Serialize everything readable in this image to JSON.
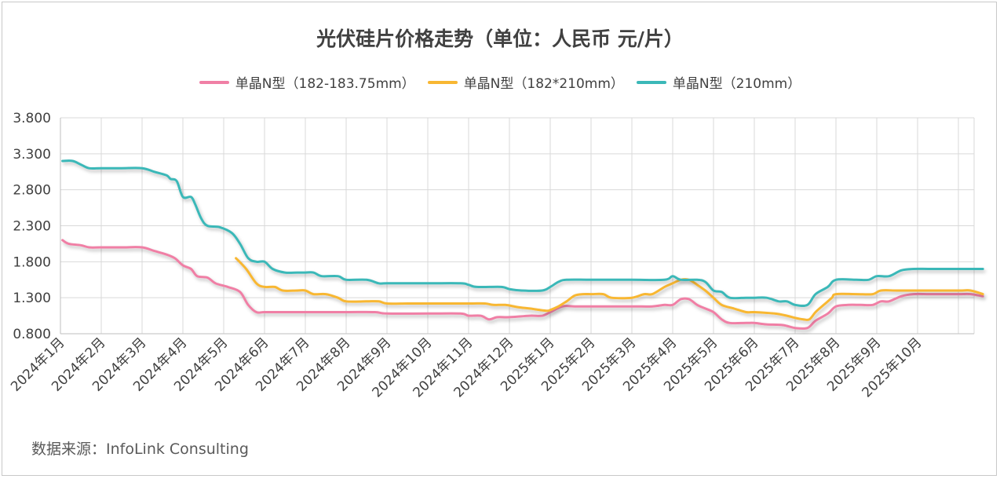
{
  "title": "光伏硅片价格走势（单位：人民币 元/片）",
  "source": "数据来源：InfoLink Consulting",
  "chart_data": {
    "type": "line",
    "title": "光伏硅片价格走势（单位：人民币 元/片）",
    "legend_position": "top",
    "grid": true,
    "ylim": [
      0.8,
      3.8
    ],
    "yticks": [
      "0.800",
      "1.300",
      "1.800",
      "2.300",
      "2.800",
      "3.300",
      "3.800"
    ],
    "categories": [
      "2024年1月",
      "2024年2月",
      "2024年3月",
      "2024年4月",
      "2024年5月",
      "2024年6月",
      "2024年7月",
      "2024年8月",
      "2024年9月",
      "2024年10月",
      "2024年11月",
      "2024年12月",
      "2025年1月",
      "2025年2月",
      "2025年3月",
      "2025年4月",
      "2025年5月",
      "2025年6月",
      "2025年7月",
      "2025年8月",
      "2025年9月",
      "2025年10月"
    ],
    "series": [
      {
        "name": "单晶N型（182-183.75mm）",
        "color": "#f07fa5",
        "points": [
          [
            0.05,
            2.1
          ],
          [
            0.2,
            2.05
          ],
          [
            0.5,
            2.03
          ],
          [
            0.7,
            2.0
          ],
          [
            1.0,
            2.0
          ],
          [
            1.5,
            2.0
          ],
          [
            2.0,
            2.0
          ],
          [
            2.3,
            1.95
          ],
          [
            2.6,
            1.9
          ],
          [
            2.8,
            1.85
          ],
          [
            3.0,
            1.75
          ],
          [
            3.2,
            1.7
          ],
          [
            3.35,
            1.6
          ],
          [
            3.6,
            1.58
          ],
          [
            3.8,
            1.5
          ],
          [
            4.1,
            1.45
          ],
          [
            4.4,
            1.38
          ],
          [
            4.6,
            1.2
          ],
          [
            4.8,
            1.1
          ],
          [
            5.0,
            1.1
          ],
          [
            5.5,
            1.1
          ],
          [
            6.0,
            1.1
          ],
          [
            7.0,
            1.1
          ],
          [
            7.7,
            1.1
          ],
          [
            8.0,
            1.08
          ],
          [
            9.0,
            1.08
          ],
          [
            9.8,
            1.08
          ],
          [
            10.0,
            1.05
          ],
          [
            10.3,
            1.05
          ],
          [
            10.5,
            1.0
          ],
          [
            10.7,
            1.03
          ],
          [
            11.0,
            1.03
          ],
          [
            11.5,
            1.05
          ],
          [
            11.8,
            1.05
          ],
          [
            12.0,
            1.1
          ],
          [
            12.3,
            1.18
          ],
          [
            12.6,
            1.18
          ],
          [
            13.0,
            1.18
          ],
          [
            14.0,
            1.18
          ],
          [
            14.5,
            1.18
          ],
          [
            14.8,
            1.2
          ],
          [
            15.0,
            1.2
          ],
          [
            15.2,
            1.28
          ],
          [
            15.4,
            1.28
          ],
          [
            15.6,
            1.2
          ],
          [
            15.8,
            1.15
          ],
          [
            16.0,
            1.1
          ],
          [
            16.2,
            1.0
          ],
          [
            16.4,
            0.95
          ],
          [
            16.8,
            0.95
          ],
          [
            17.0,
            0.95
          ],
          [
            17.3,
            0.93
          ],
          [
            17.7,
            0.92
          ],
          [
            18.0,
            0.88
          ],
          [
            18.3,
            0.88
          ],
          [
            18.5,
            0.98
          ],
          [
            18.8,
            1.08
          ],
          [
            19.0,
            1.18
          ],
          [
            19.3,
            1.2
          ],
          [
            19.6,
            1.2
          ],
          [
            19.9,
            1.2
          ],
          [
            20.1,
            1.25
          ],
          [
            20.3,
            1.25
          ],
          [
            20.6,
            1.32
          ],
          [
            20.9,
            1.35
          ],
          [
            21.3,
            1.35
          ],
          [
            22.0,
            1.35
          ],
          [
            22.3,
            1.35
          ],
          [
            22.6,
            1.32
          ]
        ]
      },
      {
        "name": "单晶N型（182*210mm）",
        "color": "#f8b733",
        "points": [
          [
            4.3,
            1.85
          ],
          [
            4.55,
            1.7
          ],
          [
            4.8,
            1.5
          ],
          [
            5.0,
            1.45
          ],
          [
            5.25,
            1.45
          ],
          [
            5.45,
            1.4
          ],
          [
            5.8,
            1.4
          ],
          [
            6.0,
            1.4
          ],
          [
            6.2,
            1.35
          ],
          [
            6.5,
            1.35
          ],
          [
            6.8,
            1.3
          ],
          [
            7.0,
            1.25
          ],
          [
            7.5,
            1.25
          ],
          [
            7.8,
            1.25
          ],
          [
            8.0,
            1.22
          ],
          [
            8.5,
            1.22
          ],
          [
            9.0,
            1.22
          ],
          [
            10.0,
            1.22
          ],
          [
            10.4,
            1.22
          ],
          [
            10.6,
            1.2
          ],
          [
            10.9,
            1.2
          ],
          [
            11.2,
            1.17
          ],
          [
            11.5,
            1.15
          ],
          [
            11.9,
            1.12
          ],
          [
            12.0,
            1.13
          ],
          [
            12.2,
            1.18
          ],
          [
            12.4,
            1.25
          ],
          [
            12.6,
            1.33
          ],
          [
            12.8,
            1.35
          ],
          [
            13.0,
            1.35
          ],
          [
            13.3,
            1.35
          ],
          [
            13.5,
            1.3
          ],
          [
            14.0,
            1.3
          ],
          [
            14.3,
            1.35
          ],
          [
            14.5,
            1.35
          ],
          [
            14.8,
            1.45
          ],
          [
            15.0,
            1.5
          ],
          [
            15.2,
            1.55
          ],
          [
            15.4,
            1.55
          ],
          [
            15.6,
            1.48
          ],
          [
            15.8,
            1.4
          ],
          [
            16.0,
            1.3
          ],
          [
            16.2,
            1.2
          ],
          [
            16.5,
            1.15
          ],
          [
            16.8,
            1.1
          ],
          [
            17.0,
            1.1
          ],
          [
            17.5,
            1.08
          ],
          [
            17.8,
            1.05
          ],
          [
            18.0,
            1.02
          ],
          [
            18.2,
            1.0
          ],
          [
            18.35,
            1.0
          ],
          [
            18.5,
            1.1
          ],
          [
            18.7,
            1.2
          ],
          [
            18.9,
            1.3
          ],
          [
            19.0,
            1.35
          ],
          [
            19.5,
            1.35
          ],
          [
            19.9,
            1.35
          ],
          [
            20.1,
            1.4
          ],
          [
            20.5,
            1.4
          ],
          [
            21.0,
            1.4
          ],
          [
            22.0,
            1.4
          ],
          [
            22.3,
            1.4
          ],
          [
            22.6,
            1.35
          ]
        ]
      },
      {
        "name": "单晶N型（210mm）",
        "color": "#3bb8b8",
        "points": [
          [
            0.05,
            3.2
          ],
          [
            0.3,
            3.2
          ],
          [
            0.5,
            3.15
          ],
          [
            0.7,
            3.1
          ],
          [
            1.0,
            3.1
          ],
          [
            1.5,
            3.1
          ],
          [
            2.0,
            3.1
          ],
          [
            2.3,
            3.05
          ],
          [
            2.6,
            3.0
          ],
          [
            2.7,
            2.95
          ],
          [
            2.85,
            2.92
          ],
          [
            3.0,
            2.7
          ],
          [
            3.2,
            2.7
          ],
          [
            3.3,
            2.6
          ],
          [
            3.45,
            2.4
          ],
          [
            3.6,
            2.3
          ],
          [
            3.9,
            2.28
          ],
          [
            4.2,
            2.2
          ],
          [
            4.4,
            2.05
          ],
          [
            4.6,
            1.85
          ],
          [
            4.8,
            1.8
          ],
          [
            5.0,
            1.8
          ],
          [
            5.2,
            1.7
          ],
          [
            5.5,
            1.65
          ],
          [
            5.8,
            1.65
          ],
          [
            6.0,
            1.65
          ],
          [
            6.2,
            1.65
          ],
          [
            6.4,
            1.6
          ],
          [
            6.8,
            1.6
          ],
          [
            7.0,
            1.55
          ],
          [
            7.5,
            1.55
          ],
          [
            7.8,
            1.5
          ],
          [
            8.0,
            1.5
          ],
          [
            9.0,
            1.5
          ],
          [
            9.8,
            1.5
          ],
          [
            10.0,
            1.48
          ],
          [
            10.2,
            1.45
          ],
          [
            10.8,
            1.45
          ],
          [
            11.0,
            1.42
          ],
          [
            11.3,
            1.4
          ],
          [
            11.8,
            1.4
          ],
          [
            12.0,
            1.45
          ],
          [
            12.2,
            1.52
          ],
          [
            12.4,
            1.55
          ],
          [
            13.0,
            1.55
          ],
          [
            14.0,
            1.55
          ],
          [
            14.8,
            1.55
          ],
          [
            15.0,
            1.6
          ],
          [
            15.2,
            1.55
          ],
          [
            15.6,
            1.55
          ],
          [
            15.8,
            1.52
          ],
          [
            16.0,
            1.4
          ],
          [
            16.2,
            1.38
          ],
          [
            16.4,
            1.3
          ],
          [
            16.8,
            1.3
          ],
          [
            17.0,
            1.3
          ],
          [
            17.3,
            1.3
          ],
          [
            17.6,
            1.25
          ],
          [
            17.8,
            1.25
          ],
          [
            18.0,
            1.2
          ],
          [
            18.3,
            1.2
          ],
          [
            18.5,
            1.35
          ],
          [
            18.8,
            1.45
          ],
          [
            19.0,
            1.55
          ],
          [
            19.5,
            1.55
          ],
          [
            19.8,
            1.55
          ],
          [
            20.0,
            1.6
          ],
          [
            20.3,
            1.6
          ],
          [
            20.6,
            1.68
          ],
          [
            20.9,
            1.7
          ],
          [
            21.3,
            1.7
          ],
          [
            22.0,
            1.7
          ],
          [
            22.6,
            1.7
          ]
        ]
      }
    ]
  }
}
